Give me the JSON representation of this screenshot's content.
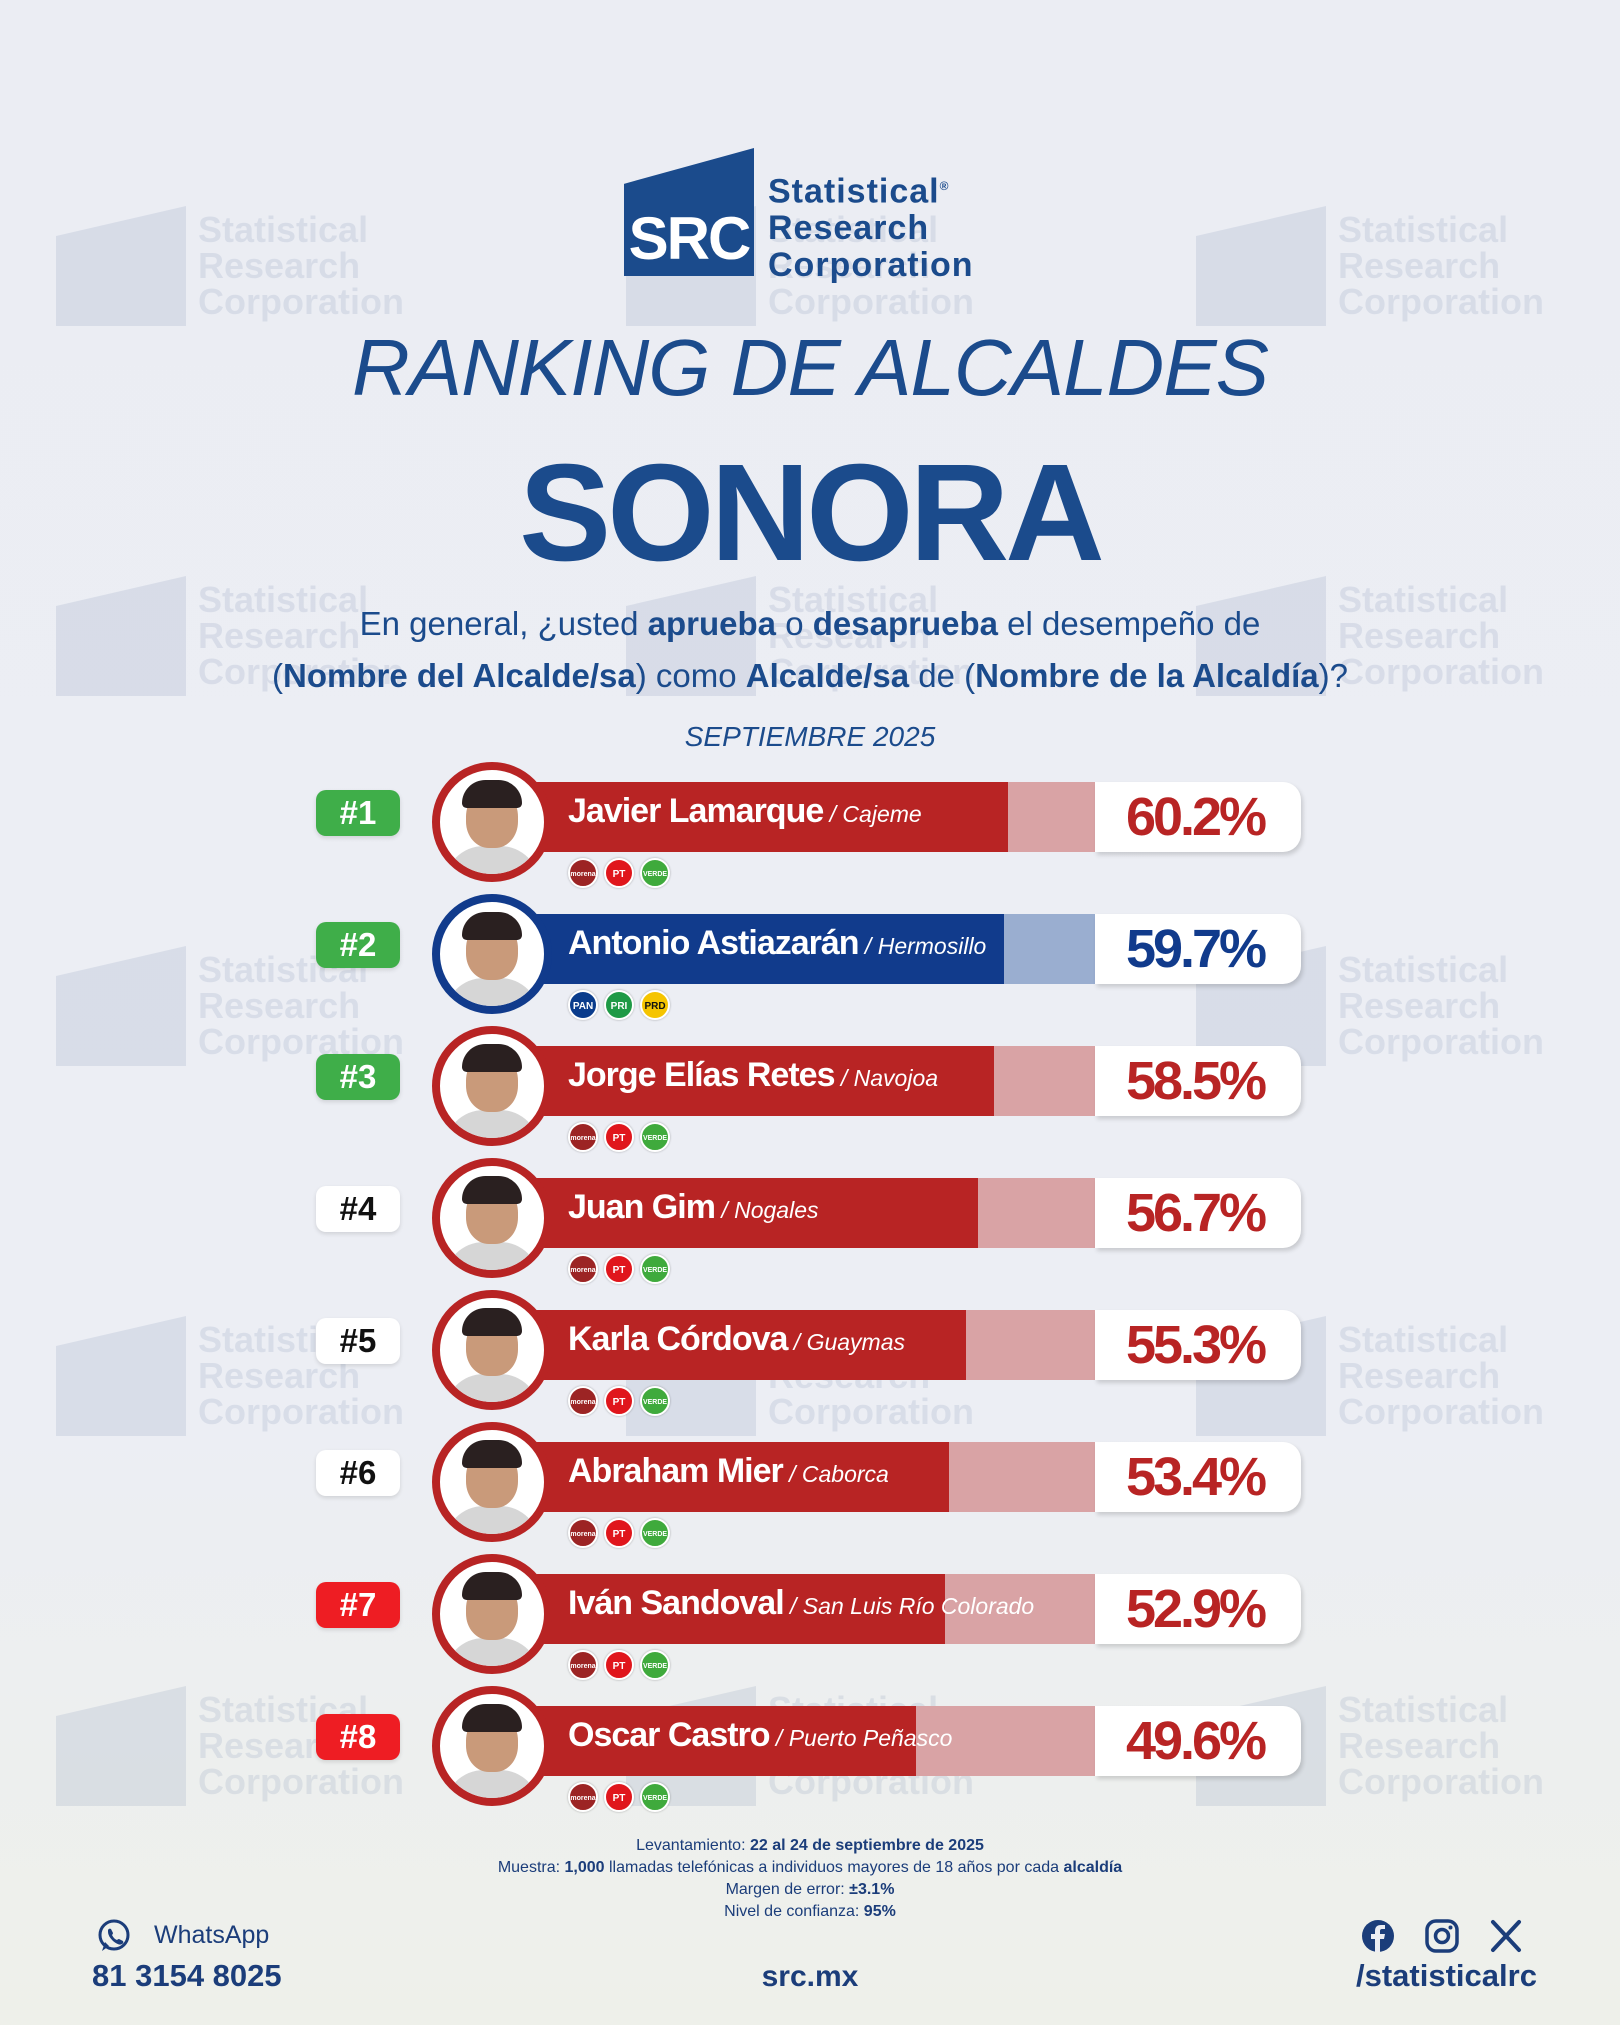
{
  "brand": {
    "logo_abbr": "SRC",
    "logo_line1": "Statistical",
    "logo_line2": "Research",
    "logo_line3": "Corporation",
    "reg_mark": "®"
  },
  "title": "RANKING DE ALCALDES",
  "subtitle": "SONORA",
  "question": {
    "p1": "En general, ¿usted ",
    "b1": "aprueba",
    "p2": " o ",
    "b2": "desaprueba",
    "p3": " el desempeño de",
    "p4": "(",
    "b3": "Nombre del Alcalde/sa",
    "p5": ") como ",
    "b4": "Alcalde/sa",
    "p6": " de (",
    "b5": "Nombre de la Alcaldía",
    "p7": ")?"
  },
  "date": "SEPTIEMBRE 2025",
  "chart_data": {
    "type": "bar",
    "title": "RANKING DE ALCALDES",
    "xlabel": "",
    "ylabel": "",
    "ylim": [
      0,
      100
    ],
    "categories": [
      "Javier Lamarque",
      "Antonio Astiazarán",
      "Jorge Elías Retes",
      "Juan Gim",
      "Karla Córdova",
      "Abraham Mier",
      "Iván Sandoval",
      "Oscar Castro"
    ],
    "values": [
      60.2,
      59.7,
      58.5,
      56.7,
      55.3,
      53.4,
      52.9,
      49.6
    ],
    "rows": [
      {
        "rank": "#1",
        "name": "Javier Lamarque",
        "city": " / Cajeme",
        "value": 60.2,
        "label": "60.2%",
        "rank_color": "#3fae49",
        "bar_color": "#b82424",
        "track_color": "#d9a3a5",
        "parties": [
          "morena",
          "PT",
          "VERDE"
        ]
      },
      {
        "rank": "#2",
        "name": "Antonio Astiazarán",
        "city": " / Hermosillo",
        "value": 59.7,
        "label": "59.7%",
        "rank_color": "#3fae49",
        "bar_color": "#113b8c",
        "track_color": "#9aaed0",
        "parties": [
          "PAN",
          "PRI",
          "PRD"
        ]
      },
      {
        "rank": "#3",
        "name": "Jorge Elías Retes",
        "city": " / Navojoa",
        "value": 58.5,
        "label": "58.5%",
        "rank_color": "#3fae49",
        "bar_color": "#b82424",
        "track_color": "#d9a3a5",
        "parties": [
          "morena",
          "PT",
          "VERDE"
        ]
      },
      {
        "rank": "#4",
        "name": "Juan Gim",
        "city": " / Nogales",
        "value": 56.7,
        "label": "56.7%",
        "rank_color": "#ffffff",
        "bar_color": "#b82424",
        "track_color": "#d9a3a5",
        "parties": [
          "morena",
          "PT",
          "VERDE"
        ]
      },
      {
        "rank": "#5",
        "name": "Karla Córdova",
        "city": " / Guaymas",
        "value": 55.3,
        "label": "55.3%",
        "rank_color": "#ffffff",
        "bar_color": "#b82424",
        "track_color": "#d9a3a5",
        "parties": [
          "morena",
          "PT",
          "VERDE"
        ]
      },
      {
        "rank": "#6",
        "name": "Abraham Mier",
        "city": " / Caborca",
        "value": 53.4,
        "label": "53.4%",
        "rank_color": "#ffffff",
        "bar_color": "#b82424",
        "track_color": "#d9a3a5",
        "parties": [
          "morena",
          "PT",
          "VERDE"
        ]
      },
      {
        "rank": "#7",
        "name": "Iván Sandoval",
        "city": " / San Luis Río Colorado",
        "value": 52.9,
        "label": "52.9%",
        "rank_color": "#ee1d23",
        "bar_color": "#b82424",
        "track_color": "#d9a3a5",
        "parties": [
          "morena",
          "PT",
          "VERDE"
        ]
      },
      {
        "rank": "#8",
        "name": "Oscar Castro",
        "city": " / Puerto Peñasco",
        "value": 49.6,
        "label": "49.6%",
        "rank_color": "#ee1d23",
        "bar_color": "#b82424",
        "track_color": "#d9a3a5",
        "parties": [
          "morena",
          "PT",
          "VERDE"
        ]
      }
    ]
  },
  "party_colors": {
    "morena": "#9c2424",
    "PT": "#e0161c",
    "VERDE": "#3faa3c",
    "PAN": "#0a3c8c",
    "PRI": "#1f9a46",
    "PRD": "#f5c400"
  },
  "methodology": {
    "l1a": "Levantamiento: ",
    "l1b": "22 al 24 de septiembre de 2025",
    "l2a": "Muestra: ",
    "l2b": "1,000",
    "l2c": " llamadas telefónicas a individuos mayores de 18 años por cada ",
    "l2d": "alcaldía",
    "l3a": "Margen de error: ",
    "l3b": "±3.1%",
    "l4a": "Nivel de confianza: ",
    "l4b": "95%"
  },
  "contact": {
    "whatsapp_label": "WhatsApp",
    "phone": "81 3154 8025",
    "site": "src.mx",
    "handle": "/statisticalrc"
  },
  "icons": [
    "whatsapp-icon",
    "facebook-icon",
    "instagram-icon",
    "x-icon"
  ]
}
